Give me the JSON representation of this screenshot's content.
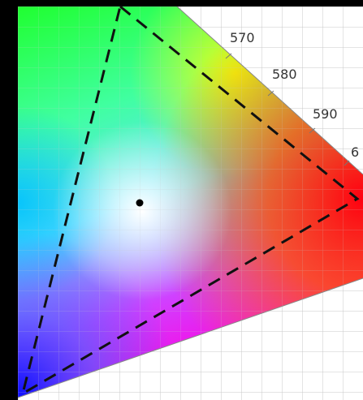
{
  "wavelength_labels": [
    "570",
    "580",
    "590",
    "6"
  ]
}
